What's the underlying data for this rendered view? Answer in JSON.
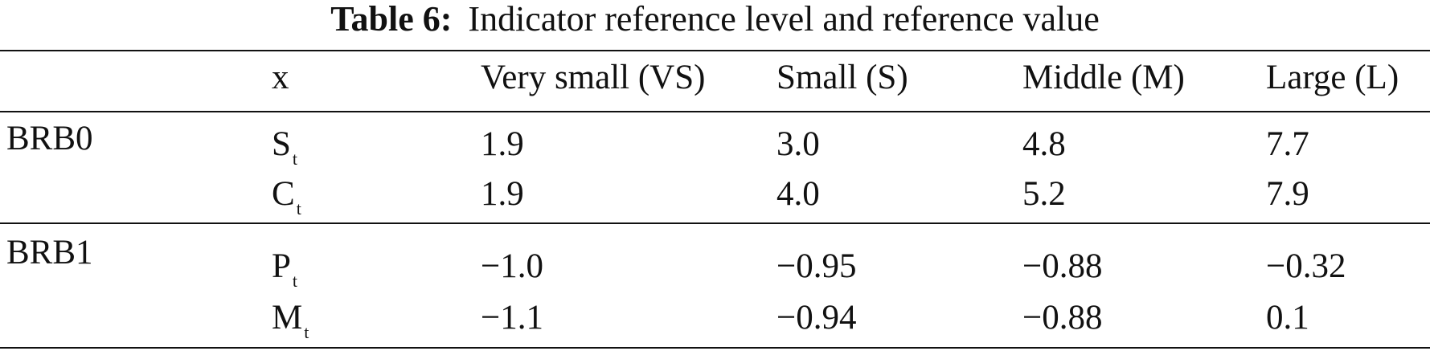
{
  "caption": {
    "label": "Table 6:",
    "text": "Indicator reference level and reference value"
  },
  "table": {
    "headers": [
      "",
      "x",
      "Very small (VS)",
      "Small (S)",
      "Middle (M)",
      "Large (L)"
    ],
    "groups": [
      {
        "name": "BRB0",
        "rows": [
          {
            "symbol": "S",
            "sub": "t",
            "values": [
              "1.9",
              "3.0",
              "4.8",
              "7.7"
            ]
          },
          {
            "symbol": "C",
            "sub": "t",
            "values": [
              "1.9",
              "4.0",
              "5.2",
              "7.9"
            ]
          }
        ]
      },
      {
        "name": "BRB1",
        "rows": [
          {
            "symbol": "P",
            "sub": "t",
            "values": [
              "−1.0",
              "−0.95",
              "−0.88",
              "−0.32"
            ]
          },
          {
            "symbol": "M",
            "sub": "t",
            "values": [
              "−1.1",
              "−0.94",
              "−0.88",
              "0.1"
            ]
          }
        ]
      }
    ]
  }
}
